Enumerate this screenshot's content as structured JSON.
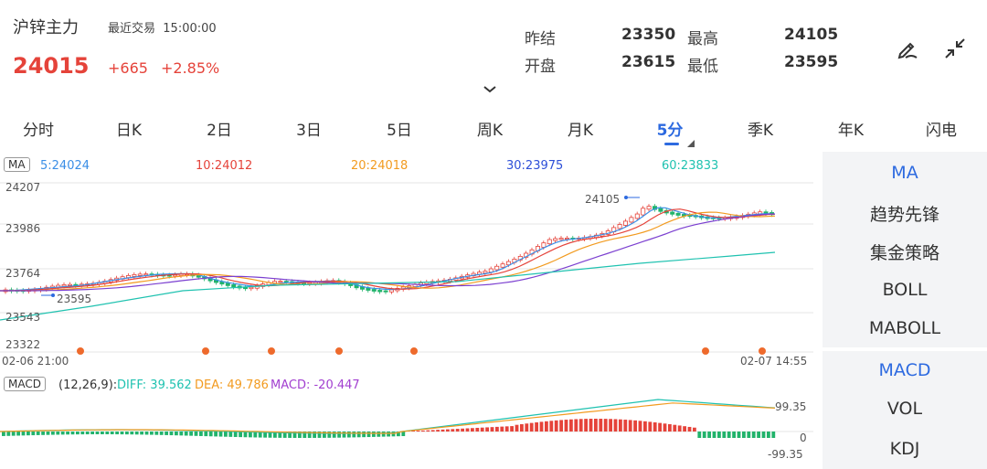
{
  "header": {
    "title": "沪锌主力",
    "session": "最近交易",
    "time": "15:00:00",
    "price": "24015",
    "change": "+665",
    "change_pct": "+2.85%"
  },
  "stats": {
    "prev_settle_label": "昨结",
    "prev_settle": "23350",
    "high_label": "最高",
    "high": "24105",
    "open_label": "开盘",
    "open": "23615",
    "low_label": "最低",
    "low": "23595"
  },
  "icons": {
    "edit": "pen-draw-icon",
    "collapse": "collapse-arrows-icon",
    "expand": "chevron-down-icon"
  },
  "tabs": [
    "分时",
    "日K",
    "2日",
    "3日",
    "5日",
    "周K",
    "月K",
    "5分",
    "季K",
    "年K",
    "闪电"
  ],
  "active_tab": "5分",
  "ma_legend": {
    "tag": "MA",
    "items": [
      {
        "text": "5:24024",
        "color": "#3a8ee6"
      },
      {
        "text": "10:24012",
        "color": "#e5433a"
      },
      {
        "text": "20:24018",
        "color": "#f29b20"
      },
      {
        "text": "30:23975",
        "color": "#2d4fd8"
      },
      {
        "text": "60:23833",
        "color": "#1fc2b0"
      }
    ]
  },
  "price_axis": [
    "24207",
    "23986",
    "23764",
    "23543",
    "23322"
  ],
  "annotations": {
    "high": "24105",
    "low": "23595"
  },
  "time_axis": {
    "start": "02-06 21:00",
    "end": "02-07 14:55"
  },
  "macd_legend": {
    "tag": "MACD",
    "params": "(12,26,9):",
    "diff": "DIFF: 39.562",
    "dea": "DEA: 49.786",
    "macd": "MACD: -20.447"
  },
  "macd_axis": {
    "top": "99.35",
    "zero": "0",
    "bottom": "-99.35"
  },
  "indicator_panel": {
    "main": [
      "MA",
      "趋势先锋",
      "集金策略",
      "BOLL",
      "MABOLL"
    ],
    "sub": [
      "MACD",
      "VOL",
      "KDJ"
    ]
  },
  "colors": {
    "up": "#e5433a",
    "down": "#21b36b",
    "accent": "#2d6ae0"
  }
}
